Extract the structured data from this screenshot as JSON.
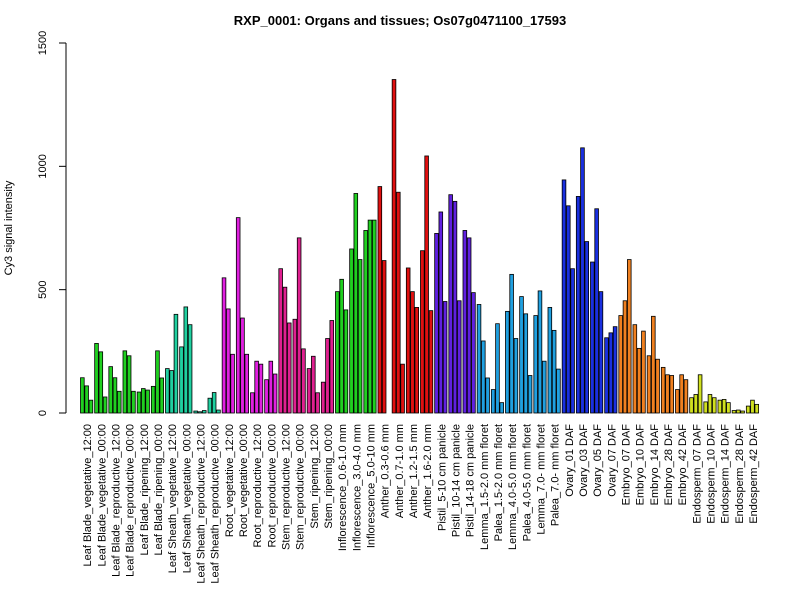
{
  "chart_data": {
    "type": "bar",
    "title": "RXP_0001: Organs and tissues; Os07g0471100_17593",
    "xlabel": "",
    "ylabel": "Cy3 signal intensity",
    "ylim": [
      0,
      1500
    ],
    "yticks": [
      0,
      500,
      1000,
      1500
    ],
    "grid": false,
    "groups": [
      {
        "label": "Leaf Blade_vegetative_12:00",
        "color": "#20d020",
        "values": [
          143,
          110,
          52
        ]
      },
      {
        "label": "Leaf Blade_vegetative_00:00",
        "color": "#20d020",
        "values": [
          282,
          248,
          65
        ]
      },
      {
        "label": "Leaf Blade_reproductive_12:00",
        "color": "#20d020",
        "values": [
          188,
          143,
          88
        ]
      },
      {
        "label": "Leaf Blade_reproductive_00:00",
        "color": "#20d020",
        "values": [
          252,
          232,
          88
        ]
      },
      {
        "label": "Leaf Blade_ripening_12:00",
        "color": "#20d020",
        "values": [
          85,
          99,
          93
        ]
      },
      {
        "label": "Leaf Blade_ripening_00:00",
        "color": "#20d020",
        "values": [
          108,
          252,
          142
        ]
      },
      {
        "label": "Leaf Sheath_vegetative_12:00",
        "color": "#20d0a0",
        "values": [
          180,
          172,
          400
        ]
      },
      {
        "label": "Leaf Sheath_vegetative_00:00",
        "color": "#20d0a0",
        "values": [
          268,
          430,
          358
        ]
      },
      {
        "label": "Leaf Sheath_reproductive_12:00",
        "color": "#20d0a0",
        "values": [
          8,
          5,
          10
        ]
      },
      {
        "label": "Leaf Sheath_reproductive_00:00",
        "color": "#20d0a0",
        "values": [
          60,
          83,
          12
        ]
      },
      {
        "label": "Root_vegetative_12:00",
        "color": "#e020e0",
        "values": [
          548,
          422,
          238
        ]
      },
      {
        "label": "Root_vegetative_00:00",
        "color": "#e020e0",
        "values": [
          792,
          385,
          238
        ]
      },
      {
        "label": "Root_reproductive_12:00",
        "color": "#e020e0",
        "values": [
          82,
          210,
          198
        ]
      },
      {
        "label": "Root_reproductive_00:00",
        "color": "#e020e0",
        "values": [
          135,
          210,
          158
        ]
      },
      {
        "label": "Stem_reproductive_12:00",
        "color": "#e02090",
        "values": [
          585,
          510,
          365
        ]
      },
      {
        "label": "Stem_reproductive_00:00",
        "color": "#e02090",
        "values": [
          380,
          710,
          260
        ]
      },
      {
        "label": "Stem_ripening_12:00",
        "color": "#e02090",
        "values": [
          180,
          230,
          82
        ]
      },
      {
        "label": "Stem_ripening_00:00",
        "color": "#e02090",
        "values": [
          125,
          302,
          375
        ]
      },
      {
        "label": "Inflorescence_0.6-1.0 mm",
        "color": "#20d020",
        "values": [
          492,
          542,
          418
        ]
      },
      {
        "label": "Inflorescence_3.0-4.0 mm",
        "color": "#20d020",
        "values": [
          665,
          890,
          622
        ]
      },
      {
        "label": "Inflorescence_5.0-10 mm",
        "color": "#20d020",
        "values": [
          740,
          782,
          782
        ]
      },
      {
        "label": "Anther_0.3-0.6 mm",
        "color": "#e01010",
        "values": [
          918,
          618
        ]
      },
      {
        "label": "Anther_0.7-1.0 mm",
        "color": "#e01010",
        "values": [
          1352,
          895,
          198
        ]
      },
      {
        "label": "Anther_1.2-1.5 mm",
        "color": "#e01010",
        "values": [
          588,
          492,
          428
        ]
      },
      {
        "label": "Anther_1.6-2.0 mm",
        "color": "#e01010",
        "values": [
          658,
          1042,
          415
        ]
      },
      {
        "label": "Pistil_5-10 cm panicle",
        "color": "#6020e0",
        "values": [
          728,
          815,
          452
        ]
      },
      {
        "label": "Pistil_10-14 cm panicle",
        "color": "#6020e0",
        "values": [
          885,
          858,
          455
        ]
      },
      {
        "label": "Pistil_14-18 cm panicle",
        "color": "#6020e0",
        "values": [
          740,
          710,
          488
        ]
      },
      {
        "label": "Lemma_1.5-2.0 mm floret",
        "color": "#20a0e0",
        "values": [
          440,
          292,
          142
        ]
      },
      {
        "label": "Palea_1.5-2.0 mm floret",
        "color": "#20a0e0",
        "values": [
          95,
          362,
          42
        ]
      },
      {
        "label": "Lemma_4.0-5.0 mm floret",
        "color": "#20a0e0",
        "values": [
          412,
          562,
          302
        ]
      },
      {
        "label": "Palea_4.0-5.0 mm floret",
        "color": "#20a0e0",
        "values": [
          472,
          402,
          152
        ]
      },
      {
        "label": "Lemma_7.0- mm floret",
        "color": "#20a0e0",
        "values": [
          395,
          495,
          210
        ]
      },
      {
        "label": "Palea_7.0- mm floret",
        "color": "#20a0e0",
        "values": [
          428,
          335,
          178
        ]
      },
      {
        "label": "Ovary_01 DAF",
        "color": "#1a30e0",
        "values": [
          945,
          840,
          585
        ]
      },
      {
        "label": "Ovary_03 DAF",
        "color": "#1a30e0",
        "values": [
          878,
          1075,
          695
        ]
      },
      {
        "label": "Ovary_05 DAF",
        "color": "#1a30e0",
        "values": [
          612,
          828,
          492
        ]
      },
      {
        "label": "Ovary_07 DAF",
        "color": "#1a30e0",
        "values": [
          305,
          325,
          350
        ]
      },
      {
        "label": "Embryo_07 DAF",
        "color": "#f08020",
        "values": [
          395,
          455,
          622
        ]
      },
      {
        "label": "Embryo_10 DAF",
        "color": "#f08020",
        "values": [
          358,
          262,
          332
        ]
      },
      {
        "label": "Embryo_14 DAF",
        "color": "#f08020",
        "values": [
          232,
          392,
          218
        ]
      },
      {
        "label": "Embryo_28 DAF",
        "color": "#f08020",
        "values": [
          185,
          155,
          152
        ]
      },
      {
        "label": "Embryo_42 DAF",
        "color": "#f08020",
        "values": [
          95,
          155,
          135
        ]
      },
      {
        "label": "Endosperm_07 DAF",
        "color": "#d0e020",
        "values": [
          62,
          75,
          155
        ]
      },
      {
        "label": "Endosperm_10 DAF",
        "color": "#d0e020",
        "values": [
          45,
          75,
          62
        ]
      },
      {
        "label": "Endosperm_14 DAF",
        "color": "#d0e020",
        "values": [
          52,
          55,
          42
        ]
      },
      {
        "label": "Endosperm_28 DAF",
        "color": "#d0e020",
        "values": [
          10,
          12,
          8
        ]
      },
      {
        "label": "Endosperm_42 DAF",
        "color": "#d0e020",
        "values": [
          28,
          52,
          35
        ]
      }
    ]
  }
}
